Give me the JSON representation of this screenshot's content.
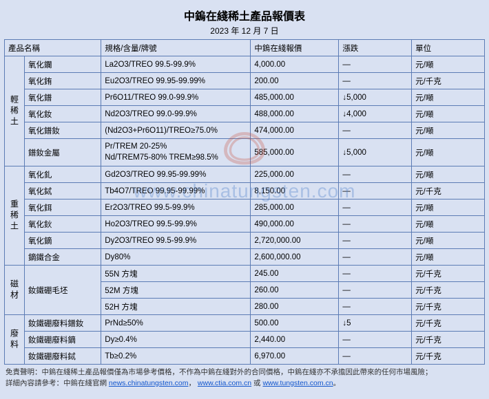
{
  "title": "中鎢在綫稀土產品報價表",
  "date": "2023 年 12 月 7 日",
  "headers": {
    "product": "產品名稱",
    "spec": "規格/含量/牌號",
    "price": "中鎢在綫報價",
    "change": "漲跌",
    "unit": "單位"
  },
  "categories": [
    {
      "label": "輕稀土",
      "rows": [
        {
          "name": "氧化鑭",
          "spec": "La2O3/TREO 99.5-99.9%",
          "price": "4,000.00",
          "change": "—",
          "unit": "元/噸"
        },
        {
          "name": "氧化銪",
          "spec": "Eu2O3/TREO 99.95-99.99%",
          "price": "200.00",
          "change": "—",
          "unit": "元/千克"
        },
        {
          "name": "氧化鐠",
          "spec": "Pr6O11/TREO 99.0-99.9%",
          "price": "485,000.00",
          "change": "↓5,000",
          "unit": "元/噸"
        },
        {
          "name": "氧化釹",
          "spec": "Nd2O3/TREO 99.0-99.9%",
          "price": "488,000.00",
          "change": "↓4,000",
          "unit": "元/噸"
        },
        {
          "name": "氧化鐠釹",
          "spec": "(Nd2O3+Pr6O11)/TREO≥75.0%",
          "price": "474,000.00",
          "change": "—",
          "unit": "元/噸"
        },
        {
          "name": "鐠釹金屬",
          "spec": "Pr/TREM 20-25%\nNd/TREM75-80% TREM≥98.5%",
          "price": "585,000.00",
          "change": "↓5,000",
          "unit": "元/噸",
          "tall": true
        }
      ]
    },
    {
      "label": "重稀土",
      "rows": [
        {
          "name": "氧化釓",
          "spec": "Gd2O3/TREO 99.95-99.99%",
          "price": "225,000.00",
          "change": "—",
          "unit": "元/噸"
        },
        {
          "name": "氧化鋱",
          "spec": "Tb4O7/TREO 99.95-99.99%",
          "price": "8,150.00",
          "change": "—",
          "unit": "元/千克"
        },
        {
          "name": "氧化鉺",
          "spec": "Er2O3/TREO 99.5-99.9%",
          "price": "285,000.00",
          "change": "—",
          "unit": "元/噸"
        },
        {
          "name": "氧化鈥",
          "spec": "Ho2O3/TREO 99.5-99.9%",
          "price": "490,000.00",
          "change": "—",
          "unit": "元/噸"
        },
        {
          "name": "氧化鏑",
          "spec": "Dy2O3/TREO 99.5-99.9%",
          "price": "2,720,000.00",
          "change": "—",
          "unit": "元/噸"
        },
        {
          "name": "鏑鐵合金",
          "spec": "Dy80%",
          "price": "2,600,000.00",
          "change": "—",
          "unit": "元/噸"
        }
      ]
    },
    {
      "label": "磁材",
      "rows": [
        {
          "name": "釹鐵硼毛坯",
          "spec": "55N 方塊",
          "price": "245.00",
          "change": "—",
          "unit": "元/千克",
          "namerowspan": 3
        },
        {
          "spec": "52M 方塊",
          "price": "260.00",
          "change": "—",
          "unit": "元/千克"
        },
        {
          "spec": "52H 方塊",
          "price": "280.00",
          "change": "—",
          "unit": "元/千克"
        }
      ]
    },
    {
      "label": "廢料",
      "rows": [
        {
          "name": "釹鐵硼廢料鐠釹",
          "spec": "PrNd≥50%",
          "price": "500.00",
          "change": "↓5",
          "unit": "元/千克"
        },
        {
          "name": "釹鐵硼廢料鏑",
          "spec": "Dy≥0.4%",
          "price": "2,440.00",
          "change": "—",
          "unit": "元/千克"
        },
        {
          "name": "釹鐵硼廢料鋱",
          "spec": "Tb≥0.2%",
          "price": "6,970.00",
          "change": "—",
          "unit": "元/千克"
        }
      ]
    }
  ],
  "footer": {
    "line1_prefix": "免責聲明：中鎢在綫稀土產品報價僅為市場參考價格，不作為中鎢在綫對外的合同價格，中鎢在綫亦不承擔因此帶來的任何市場風險；",
    "line2_prefix": "詳細內容請參考：中鎢在綫官網 ",
    "link1": "news.chinatungsten.com",
    "link_sep": "，",
    "link2": "www.ctia.com.cn",
    "link_or": " 或 ",
    "link3": "www.tungsten.com.cn",
    "suffix": "。"
  },
  "watermark": "www.chinatungsten.com",
  "colors": {
    "background": "#d9e1f2",
    "border": "#5b7bb4",
    "link": "#1155cc"
  }
}
